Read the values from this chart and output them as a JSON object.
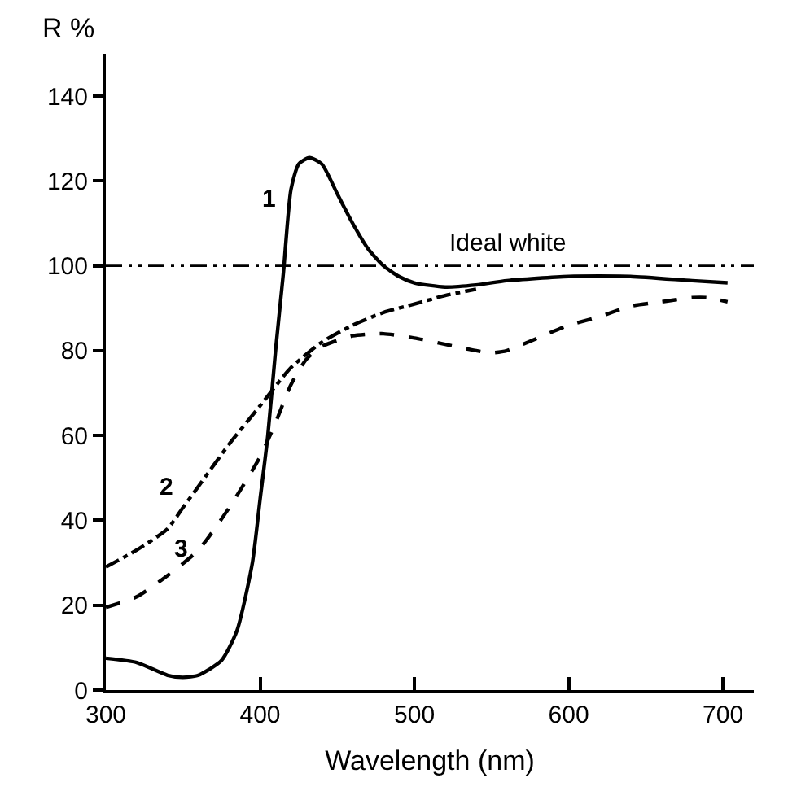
{
  "chart_data": {
    "type": "line",
    "xlabel": "Wavelength (nm)",
    "ylabel": "R %",
    "xlim": [
      300,
      720
    ],
    "xticks": [
      300,
      400,
      500,
      600,
      700
    ],
    "ylim": [
      0,
      150
    ],
    "yticks": [
      0,
      20,
      40,
      60,
      80,
      100,
      120,
      140
    ],
    "grid": false,
    "legend": false,
    "marker": "none",
    "series": [
      {
        "name": "1",
        "color": "#000000",
        "line_style": "solid",
        "x": [
          300,
          320,
          340,
          350,
          360,
          375,
          385,
          395,
          400,
          405,
          410,
          415,
          420,
          425,
          432,
          440,
          450,
          460,
          470,
          480,
          490,
          500,
          520,
          540,
          560,
          600,
          640,
          680,
          703
        ],
        "values": [
          7.5,
          6.5,
          3.5,
          3,
          3.5,
          7,
          14,
          30,
          45,
          60,
          80,
          98,
          118,
          124,
          125.5,
          124,
          117,
          110,
          104,
          100,
          97.5,
          96,
          95,
          95.5,
          96.5,
          97.5,
          97.5,
          96.5,
          96
        ]
      },
      {
        "name": "2",
        "color": "#000000",
        "line_style": "dashdot",
        "x": [
          300,
          320,
          340,
          350,
          360,
          380,
          400,
          420,
          440,
          460,
          480,
          500,
          520,
          540
        ],
        "values": [
          29,
          33,
          38,
          43,
          48,
          58,
          67,
          76,
          82,
          86,
          89,
          91,
          93,
          94.5
        ]
      },
      {
        "name": "3",
        "color": "#000000",
        "line_style": "dashed",
        "x": [
          300,
          320,
          340,
          360,
          380,
          400,
          410,
          420,
          430,
          440,
          460,
          480,
          500,
          520,
          540,
          550,
          560,
          580,
          600,
          620,
          640,
          660,
          680,
          690,
          703
        ],
        "values": [
          19.5,
          22,
          27,
          33,
          43,
          55,
          63,
          72,
          78,
          81,
          83.5,
          84,
          83,
          81.5,
          80,
          79.5,
          80,
          83,
          86,
          88,
          90.5,
          91.5,
          92.5,
          92.5,
          91.5
        ]
      }
    ],
    "ref_lines": [
      {
        "axis": "y",
        "value": 100,
        "label": "Ideal white",
        "color": "#000000",
        "line_style": "dashdotdot"
      }
    ]
  }
}
